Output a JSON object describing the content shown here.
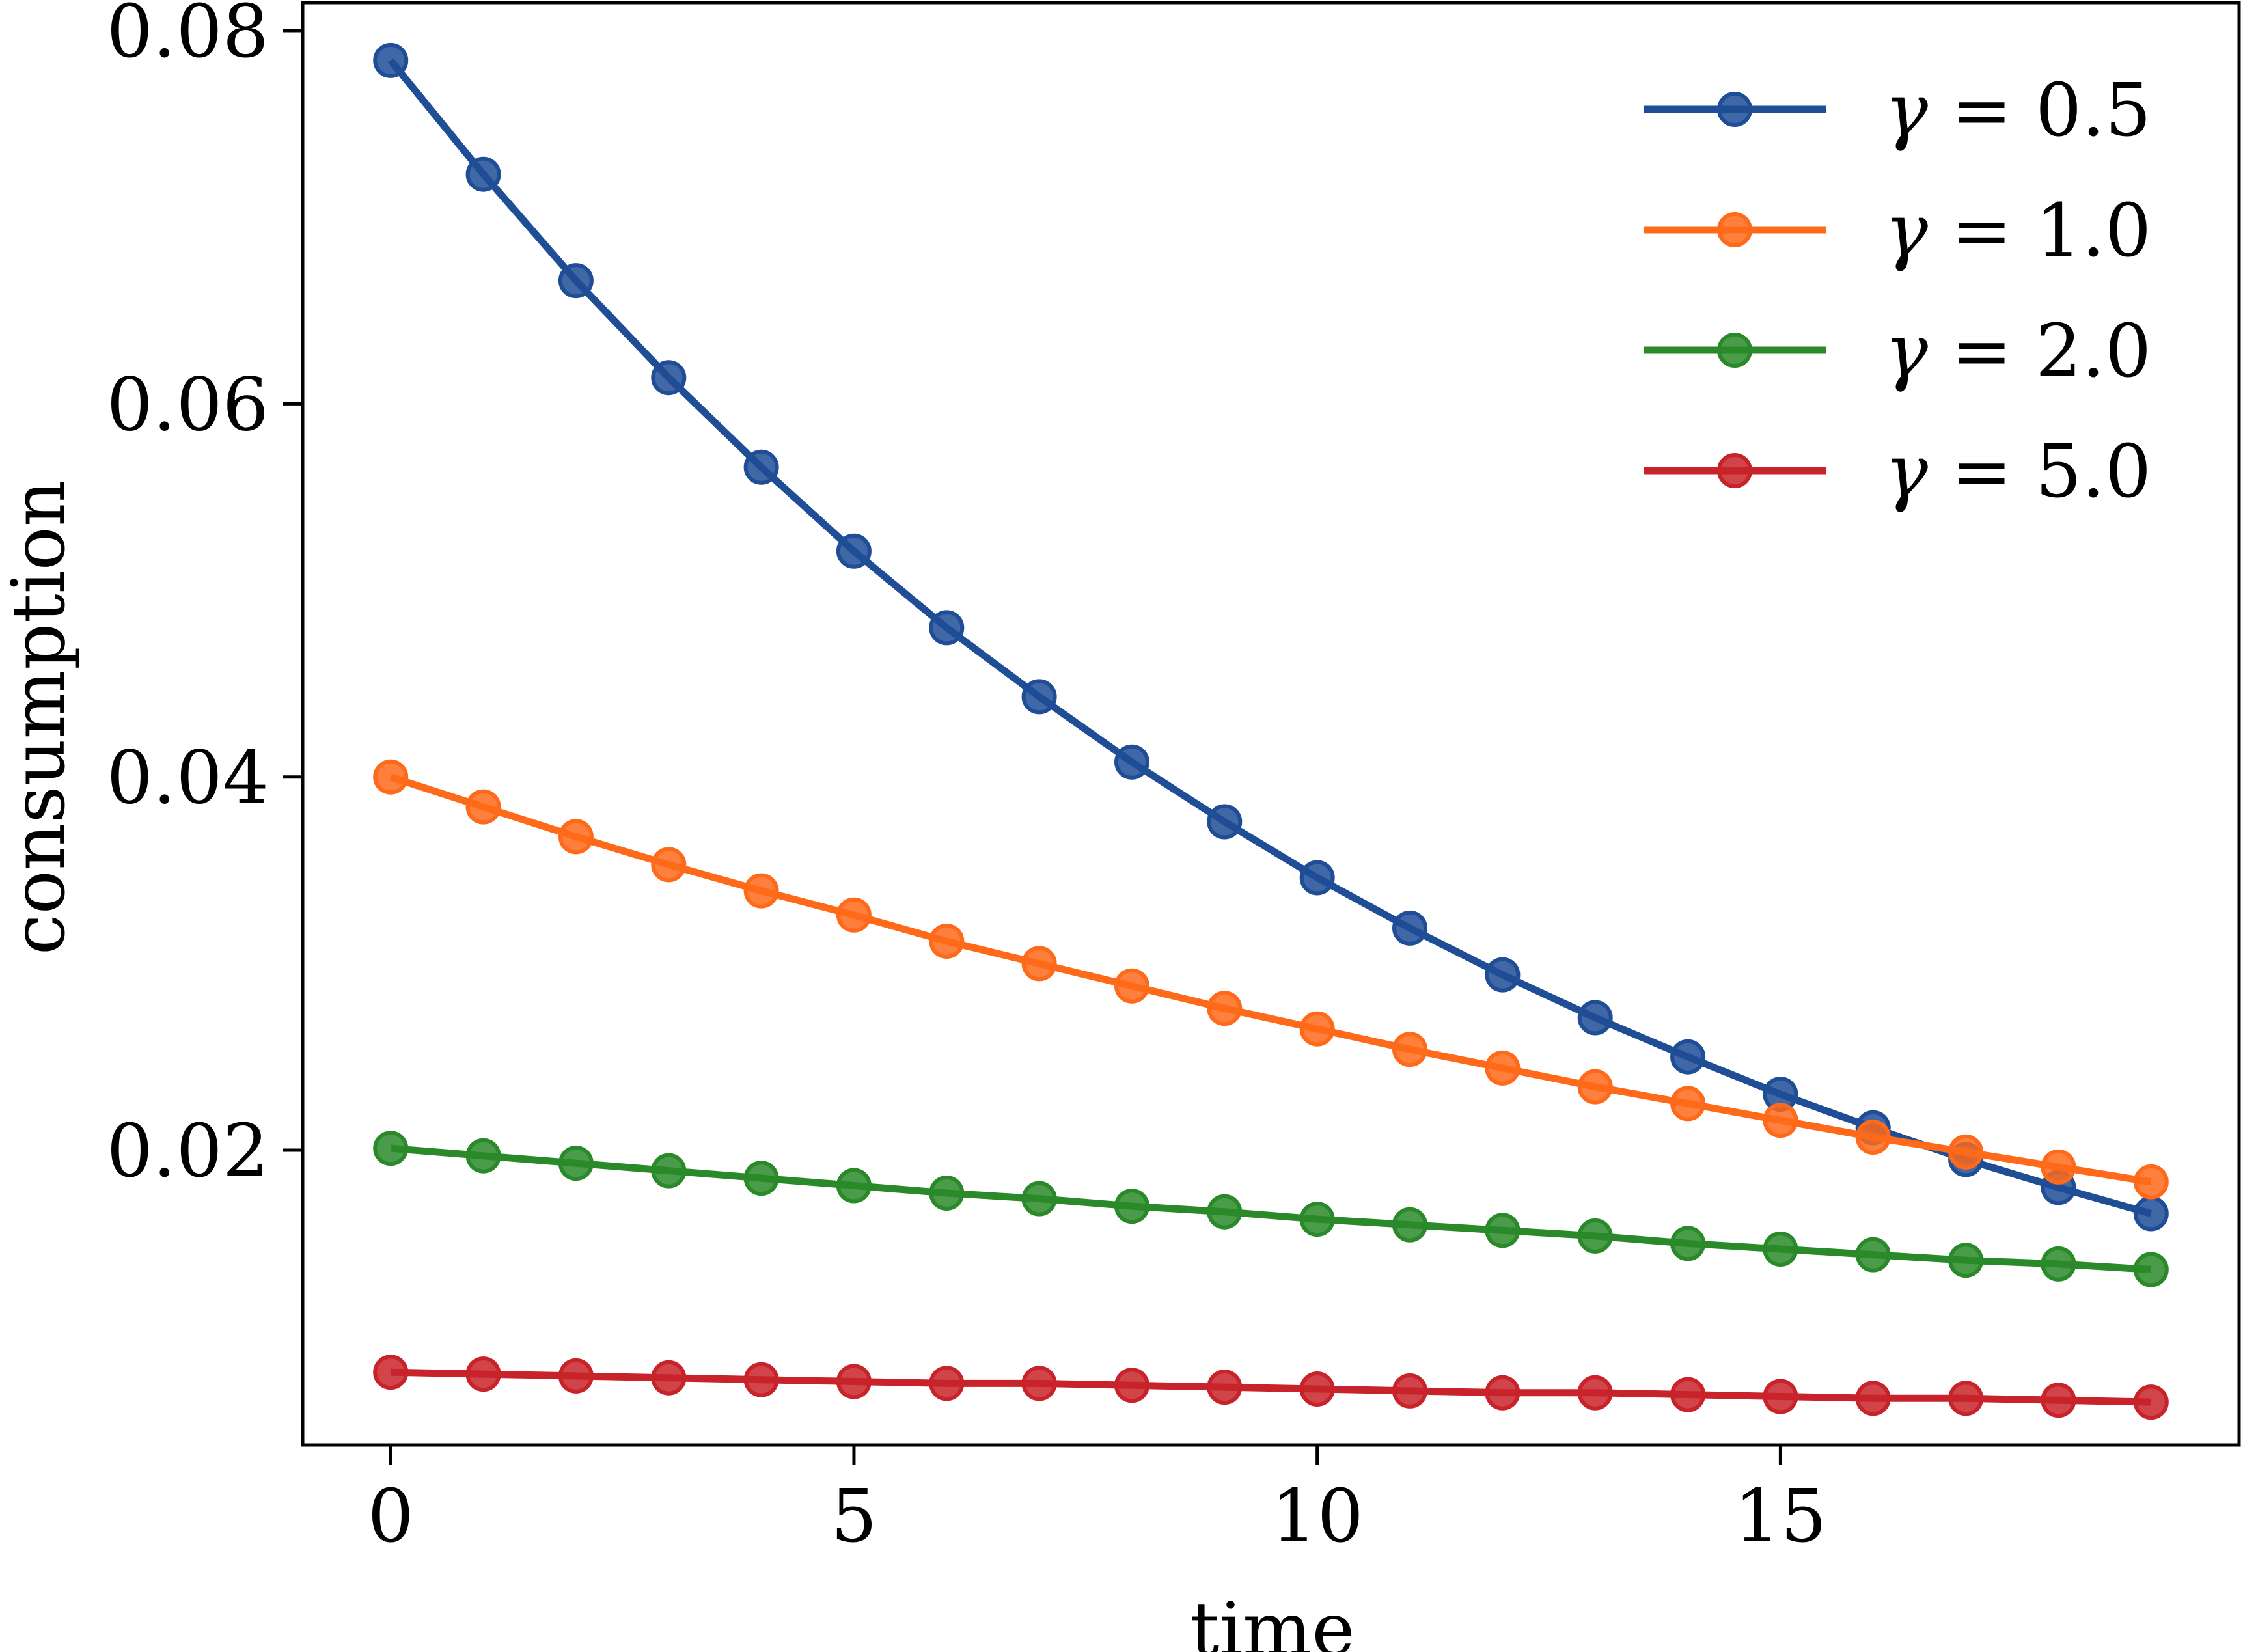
{
  "chart_data": {
    "type": "line",
    "title": "",
    "xlabel": "time",
    "ylabel": "consumption",
    "xlim": [
      -0.95,
      19.95
    ],
    "ylim": [
      0.0042,
      0.0815
    ],
    "xticks": [
      0,
      5,
      10,
      15
    ],
    "xtick_labels": [
      "0",
      "5",
      "10",
      "15"
    ],
    "yticks": [
      0.02,
      0.04,
      0.06,
      0.08
    ],
    "ytick_labels": [
      "0.02",
      "0.04",
      "0.06",
      "0.08"
    ],
    "grid": false,
    "legend_position": "top-right",
    "x": [
      0,
      1,
      2,
      3,
      4,
      5,
      6,
      7,
      8,
      9,
      10,
      11,
      12,
      13,
      14,
      15,
      16,
      17,
      18,
      19
    ],
    "series": [
      {
        "name": "γ = 0.5",
        "legend_gamma": "γ",
        "legend_rest": " = 0.5",
        "color": "#1f4e96",
        "values": [
          0.0784,
          0.0723,
          0.0666,
          0.0614,
          0.0566,
          0.0521,
          0.048,
          0.0443,
          0.0408,
          0.0376,
          0.0346,
          0.0319,
          0.0294,
          0.0271,
          0.025,
          0.023,
          0.0212,
          0.0195,
          0.018,
          0.0166
        ]
      },
      {
        "name": "γ = 1.0",
        "legend_gamma": "γ",
        "legend_rest": " = 1.0",
        "color": "#ff6a1a",
        "values": [
          0.04,
          0.0384,
          0.0368,
          0.0353,
          0.0339,
          0.0326,
          0.0312,
          0.03,
          0.0288,
          0.0276,
          0.0265,
          0.0254,
          0.0244,
          0.0234,
          0.0225,
          0.0216,
          0.0207,
          0.0199,
          0.0191,
          0.0183
        ]
      },
      {
        "name": "γ = 2.0",
        "legend_gamma": "γ",
        "legend_rest": " = 2.0",
        "color": "#2a8a2a",
        "values": [
          0.0201,
          0.0197,
          0.0193,
          0.0189,
          0.0185,
          0.0181,
          0.0177,
          0.0174,
          0.017,
          0.0167,
          0.0163,
          0.016,
          0.0157,
          0.0154,
          0.015,
          0.0147,
          0.0144,
          0.0141,
          0.0139,
          0.0136
        ]
      },
      {
        "name": "γ = 5.0",
        "legend_gamma": "γ",
        "legend_rest": " = 5.0",
        "color": "#c8232a",
        "values": [
          0.0081,
          0.008,
          0.0079,
          0.0078,
          0.0077,
          0.0076,
          0.0075,
          0.0075,
          0.0074,
          0.0073,
          0.0072,
          0.0071,
          0.007,
          0.007,
          0.0069,
          0.0068,
          0.0067,
          0.0067,
          0.0066,
          0.0065
        ]
      }
    ]
  }
}
